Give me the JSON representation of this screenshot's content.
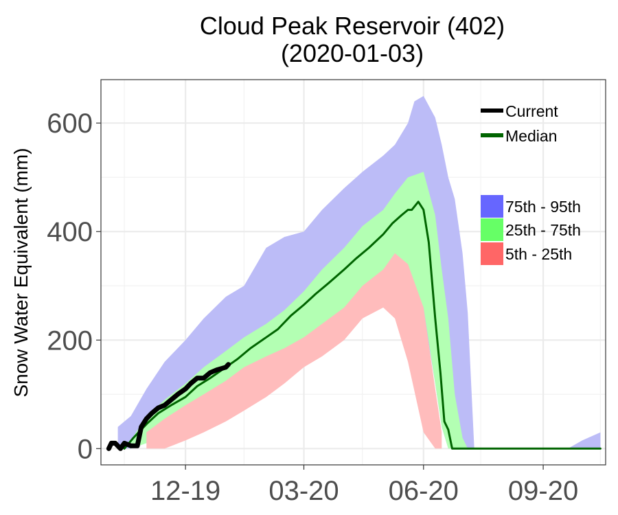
{
  "chart_data": {
    "type": "line",
    "title": "Cloud Peak Reservoir (402)",
    "subtitle": "(2020-01-03)",
    "xlabel": "",
    "ylabel": "Snow Water Equivalent (mm)",
    "x_ticks": [
      "12-19",
      "03-20",
      "06-20",
      "09-20"
    ],
    "y_ticks": [
      0,
      200,
      400,
      600
    ],
    "ylim": [
      -30,
      680
    ],
    "xlim": [
      "2019-09-27",
      "2020-10-19"
    ],
    "grid": true,
    "legend_lines": [
      {
        "label": "Current",
        "color": "#000000"
      },
      {
        "label": "Median",
        "color": "#006400"
      }
    ],
    "legend_bands": [
      {
        "label": "75th - 95th",
        "color": "#6666ff"
      },
      {
        "label": "25th - 75th",
        "color": "#66ff66"
      },
      {
        "label": "5th - 25th",
        "color": "#ff6666"
      }
    ],
    "bands": {
      "p75_95": {
        "color": "#bcbcf7",
        "x": [
          "2019-10-10",
          "2019-10-20",
          "2019-11-01",
          "2019-11-15",
          "2019-12-01",
          "2019-12-15",
          "2020-01-01",
          "2020-01-15",
          "2020-02-01",
          "2020-02-15",
          "2020-03-01",
          "2020-03-15",
          "2020-04-01",
          "2020-04-15",
          "2020-05-01",
          "2020-05-10",
          "2020-05-20",
          "2020-05-25",
          "2020-06-01",
          "2020-06-10",
          "2020-06-15",
          "2020-06-20",
          "2020-06-25",
          "2020-07-01",
          "2020-07-05",
          "2020-07-10",
          "2020-09-20",
          "2020-10-01",
          "2020-10-15"
        ],
        "upper": [
          40,
          60,
          110,
          160,
          200,
          240,
          280,
          300,
          370,
          390,
          400,
          440,
          480,
          510,
          540,
          560,
          600,
          640,
          650,
          610,
          560,
          500,
          460,
          360,
          250,
          0,
          0,
          15,
          30
        ],
        "lower": [
          0,
          0,
          25,
          45,
          90,
          110,
          145,
          175,
          205,
          235,
          255,
          285,
          320,
          345,
          370,
          395,
          395,
          360,
          250,
          120,
          40,
          0,
          0,
          0,
          0,
          0,
          0,
          0,
          0
        ]
      },
      "p25_75": {
        "color": "#b3ffb3",
        "x": [
          "2019-10-20",
          "2019-11-01",
          "2019-11-15",
          "2019-12-01",
          "2019-12-15",
          "2020-01-01",
          "2020-01-15",
          "2020-02-01",
          "2020-02-15",
          "2020-03-01",
          "2020-03-15",
          "2020-04-01",
          "2020-04-15",
          "2020-05-01",
          "2020-05-10",
          "2020-05-20",
          "2020-06-01",
          "2020-06-10",
          "2020-06-15",
          "2020-06-20",
          "2020-06-25",
          "2020-07-01",
          "2020-07-05"
        ],
        "upper": [
          15,
          60,
          90,
          120,
          150,
          180,
          205,
          230,
          255,
          290,
          330,
          370,
          410,
          440,
          470,
          500,
          510,
          430,
          330,
          240,
          100,
          20,
          0
        ],
        "lower": [
          0,
          10,
          30,
          60,
          85,
          105,
          125,
          150,
          165,
          185,
          205,
          235,
          265,
          290,
          320,
          320,
          260,
          120,
          40,
          0,
          0,
          0,
          0
        ]
      },
      "p5_25": {
        "color": "#ffbcbc",
        "x": [
          "2019-11-01",
          "2019-11-15",
          "2019-12-01",
          "2019-12-15",
          "2020-01-01",
          "2020-01-15",
          "2020-02-01",
          "2020-02-15",
          "2020-03-01",
          "2020-03-15",
          "2020-04-01",
          "2020-04-15",
          "2020-05-01",
          "2020-05-10",
          "2020-05-20",
          "2020-06-01",
          "2020-06-10",
          "2020-06-15"
        ],
        "upper": [
          30,
          55,
          80,
          100,
          125,
          150,
          170,
          185,
          205,
          230,
          260,
          300,
          330,
          360,
          340,
          260,
          110,
          30
        ],
        "lower": [
          0,
          0,
          15,
          30,
          50,
          70,
          95,
          120,
          150,
          170,
          200,
          240,
          260,
          240,
          160,
          30,
          0,
          0
        ]
      }
    },
    "series": [
      {
        "name": "Median",
        "color": "#006400",
        "x": [
          "2019-10-15",
          "2019-10-22",
          "2019-11-01",
          "2019-11-10",
          "2019-11-20",
          "2019-12-01",
          "2019-12-10",
          "2019-12-20",
          "2020-01-01",
          "2020-01-10",
          "2020-01-20",
          "2020-02-01",
          "2020-02-10",
          "2020-02-20",
          "2020-03-01",
          "2020-03-10",
          "2020-03-20",
          "2020-04-01",
          "2020-04-10",
          "2020-04-20",
          "2020-05-01",
          "2020-05-08",
          "2020-05-15",
          "2020-05-20",
          "2020-05-23",
          "2020-05-28",
          "2020-06-01",
          "2020-06-05",
          "2020-06-10",
          "2020-06-14",
          "2020-06-17",
          "2020-06-20",
          "2020-06-23",
          "2020-06-26",
          "2020-10-15"
        ],
        "y": [
          0,
          20,
          45,
          65,
          80,
          95,
          115,
          130,
          150,
          165,
          185,
          205,
          220,
          245,
          265,
          285,
          305,
          330,
          350,
          370,
          395,
          415,
          430,
          440,
          440,
          455,
          440,
          380,
          240,
          140,
          50,
          35,
          0,
          0,
          0
        ]
      },
      {
        "name": "Current",
        "color": "#000000",
        "x": [
          "2019-10-03",
          "2019-10-05",
          "2019-10-08",
          "2019-10-12",
          "2019-10-15",
          "2019-10-20",
          "2019-10-25",
          "2019-10-28",
          "2019-11-01",
          "2019-11-05",
          "2019-11-10",
          "2019-11-15",
          "2019-11-20",
          "2019-11-25",
          "2019-12-01",
          "2019-12-05",
          "2019-12-10",
          "2019-12-15",
          "2019-12-20",
          "2019-12-25",
          "2020-01-01",
          "2020-01-03"
        ],
        "y": [
          0,
          10,
          10,
          0,
          10,
          5,
          5,
          40,
          55,
          65,
          75,
          80,
          90,
          100,
          110,
          120,
          130,
          130,
          140,
          145,
          150,
          155
        ]
      }
    ]
  }
}
